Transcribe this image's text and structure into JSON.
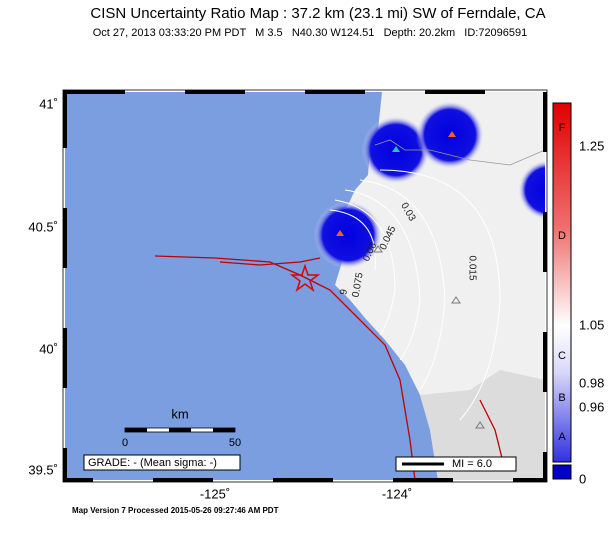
{
  "header": {
    "title": "CISN Uncertainty Ratio Map : 37.2 km (23.1 mi) SW of Ferndale, CA",
    "subtitle": "Oct 27, 2013 03:33:20 PM PDT   M 3.5   N40.30 W124.51   Depth: 20.2km   ID:72096591"
  },
  "map": {
    "lat_labels": [
      "41˚",
      "40.5˚",
      "40˚",
      "39.5˚"
    ],
    "lon_labels": [
      "-125˚",
      "-124˚"
    ],
    "contour_labels": [
      "0.03",
      "0.045",
      "0.06",
      "0.075",
      "9",
      "0.015"
    ],
    "scale": {
      "unit": "km",
      "start": "0",
      "end": "50"
    },
    "grade": "GRADE: - (Mean sigma: -)",
    "mi_legend": "MI = 6.0"
  },
  "colorbar": {
    "grades": [
      "F",
      "D",
      "C",
      "B",
      "A"
    ],
    "values": [
      "1.25",
      "1.05",
      "0.98",
      "0.96",
      "0"
    ]
  },
  "footer": "Map Version 7 Processed 2015-05-26 09:27:46 AM PDT"
}
